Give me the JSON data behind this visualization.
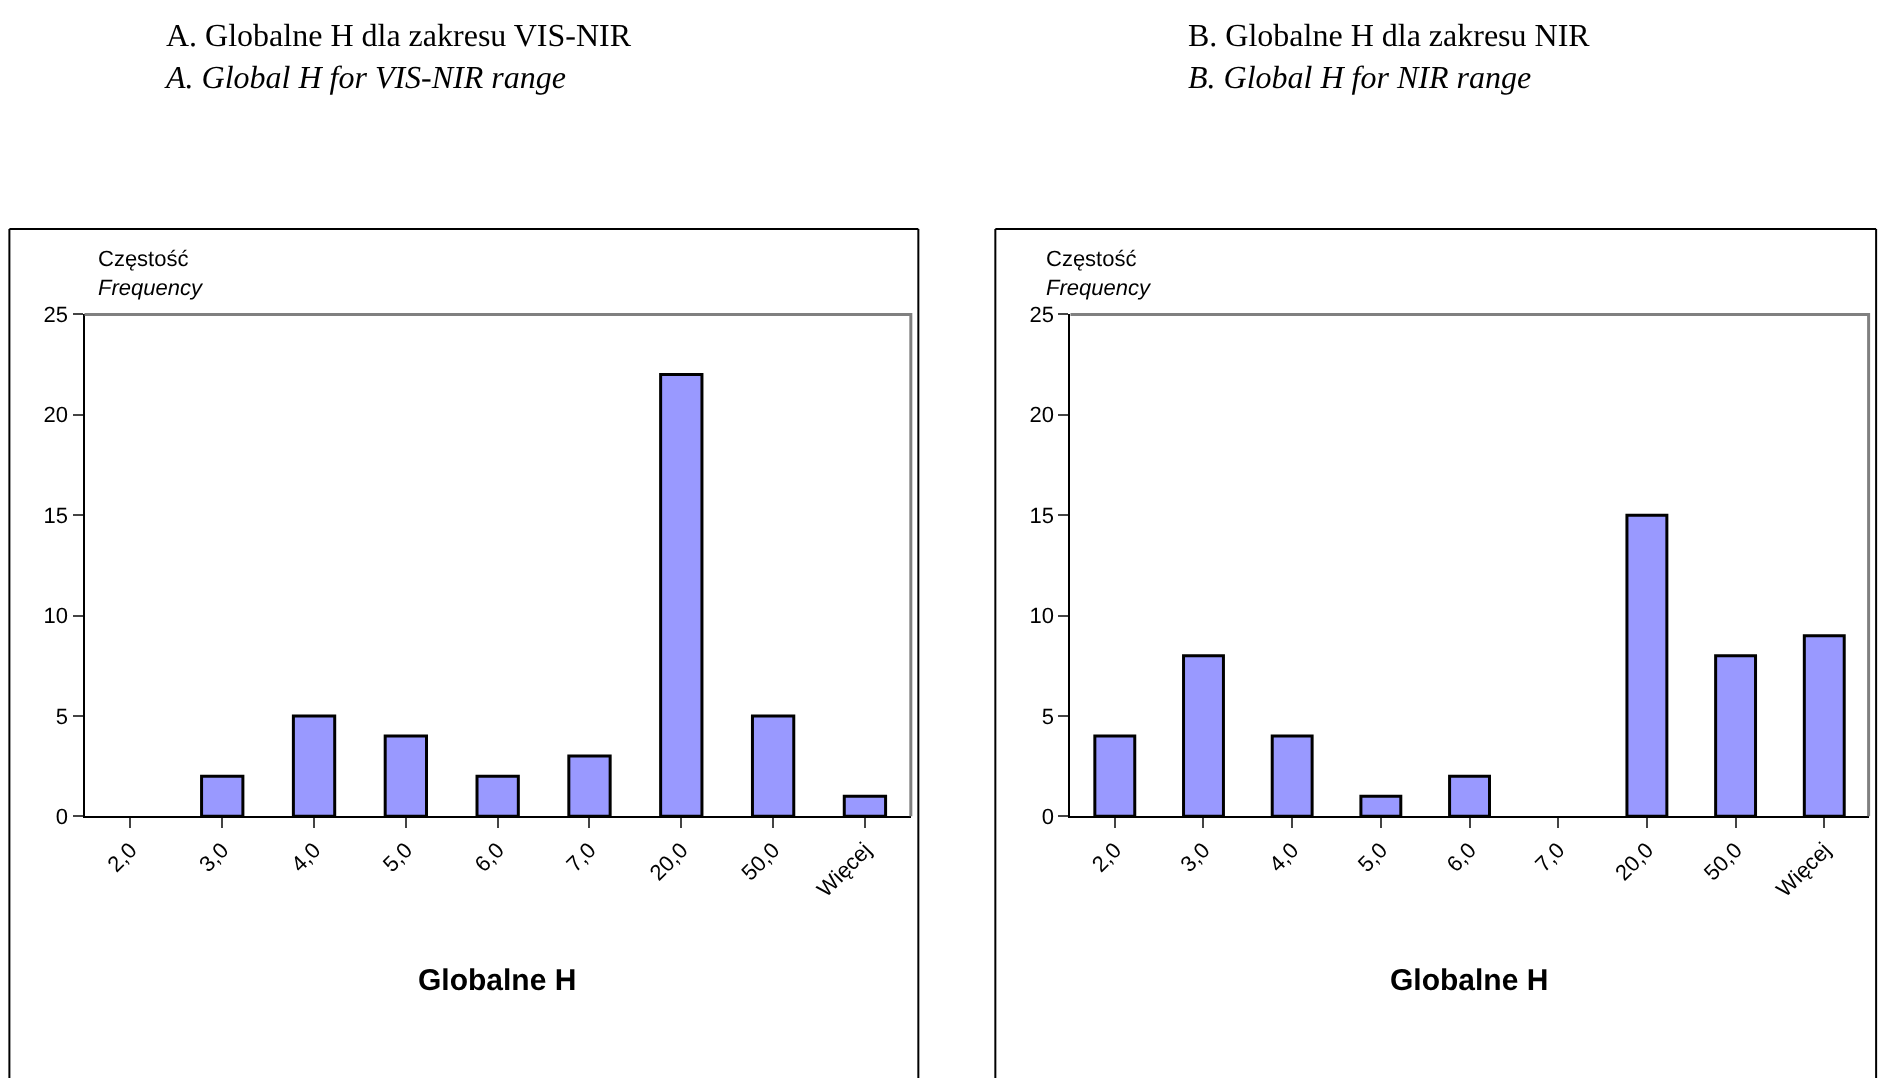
{
  "chart_data": [
    {
      "type": "bar",
      "title": "A. Globalne H dla zakresu VIS-NIR\nA. Global H for VIS-NIR range",
      "ylabel": "Częstość\nFrequency",
      "xlabel": "Globalne H",
      "categories": [
        "2,0",
        "3,0",
        "4,0",
        "5,0",
        "6,0",
        "7,0",
        "20,0",
        "50,0",
        "Więcej"
      ],
      "values": [
        0,
        2,
        5,
        4,
        2,
        3,
        22,
        5,
        1
      ],
      "color": "#9999ff",
      "ylim": [
        0,
        25
      ],
      "yticks": [
        0,
        5,
        10,
        15,
        20,
        25
      ],
      "legend": false
    },
    {
      "type": "bar",
      "title": "B. Globalne H dla zakresu NIR\nB. Global H for NIR range",
      "ylabel": "Częstość\nFrequency",
      "xlabel": "Globalne H",
      "categories": [
        "2,0",
        "3,0",
        "4,0",
        "5,0",
        "6,0",
        "7,0",
        "20,0",
        "50,0",
        "Więcej"
      ],
      "values": [
        4,
        8,
        4,
        1,
        2,
        0,
        15,
        8,
        9
      ],
      "color": "#9999ff",
      "ylim": [
        0,
        25
      ],
      "yticks": [
        0,
        5,
        10,
        15,
        20,
        25
      ],
      "legend": false
    }
  ]
}
